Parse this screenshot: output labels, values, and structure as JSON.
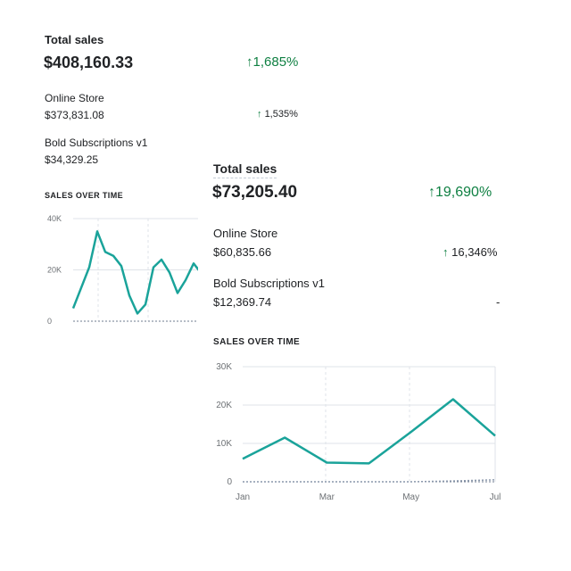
{
  "card_back": {
    "total_sales": {
      "title": "Total sales",
      "value": "$408,160.33",
      "change": "1,685%"
    },
    "breakdown": [
      {
        "label": "Online Store",
        "value": "$373,831.08",
        "change": "1,535%"
      },
      {
        "label": "Bold Subscriptions v1",
        "value": "$34,329.25",
        "change": ""
      }
    ],
    "chart_caption": "SALES OVER TIME"
  },
  "card_front": {
    "total_sales": {
      "title": "Total sales",
      "value": "$73,205.40",
      "change": "19,690%"
    },
    "breakdown": [
      {
        "label": "Online Store",
        "value": "$60,835.66",
        "change": "16,346%"
      },
      {
        "label": "Bold Subscriptions v1",
        "value": "$12,369.74",
        "change": "-"
      }
    ],
    "chart_caption": "SALES OVER TIME"
  },
  "colors": {
    "line": "#1aa39a",
    "positive": "#108043",
    "grid": "#dfe3e8",
    "baseline_dash": "#6f7b8f"
  },
  "chart_data": [
    {
      "type": "line",
      "title": "SALES OVER TIME",
      "ylim": [
        0,
        40000
      ],
      "yticks": [
        "0",
        "20K",
        "40K"
      ],
      "series": [
        {
          "values": [
            5000,
            13000,
            21000,
            35000,
            27000,
            25500,
            21500,
            10000,
            3000,
            6500,
            21000,
            24000,
            19000,
            11000,
            16000,
            22500,
            18500
          ]
        }
      ]
    },
    {
      "type": "line",
      "title": "SALES OVER TIME",
      "ylim": [
        0,
        30000
      ],
      "yticks": [
        "0",
        "10K",
        "20K",
        "30K"
      ],
      "xtick_labels": [
        "Jan",
        "Mar",
        "May",
        "Jul"
      ],
      "series": [
        {
          "values": [
            6000,
            11500,
            5000,
            4800,
            13000,
            21500,
            12000
          ]
        },
        {
          "values": [
            0,
            0,
            0,
            0,
            0,
            200,
            500
          ]
        }
      ]
    }
  ]
}
